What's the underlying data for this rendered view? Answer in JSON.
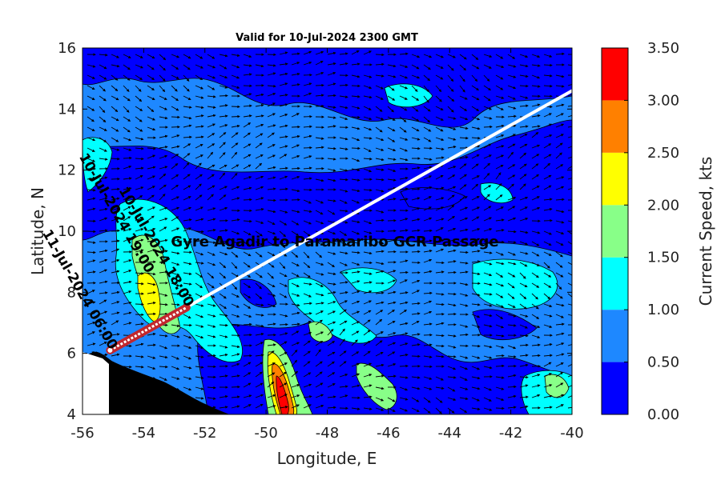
{
  "title": "Valid for 10-Jul-2024 2300 GMT",
  "map": {
    "xlabel": "Longitude, E",
    "ylabel": "Latitude, N",
    "xlim": [
      -56,
      -40
    ],
    "ylim": [
      4,
      16
    ],
    "xticks": [
      "-56",
      "-54",
      "-52",
      "-50",
      "-48",
      "-46",
      "-44",
      "-42",
      "-40"
    ],
    "yticks": [
      "4",
      "6",
      "8",
      "10",
      "12",
      "14",
      "16"
    ],
    "route": {
      "label": "Gyre Agadir to Paramaribo GCR Passage",
      "start": [
        -55.1,
        6.1
      ],
      "end": [
        -40.0,
        14.6
      ],
      "traveled_end": [
        -52.6,
        7.5
      ],
      "color": "#ffffff",
      "traveled_color": "#c1272d"
    },
    "timestamps": [
      {
        "text": "11-Jul-2024 06:00",
        "at": [
          -55.1,
          6.1
        ]
      },
      {
        "text": "10-Jul-2024 18:00",
        "at": [
          -52.6,
          7.5
        ]
      },
      {
        "text": "10-Jul-2024 19:00",
        "at": [
          -53.9,
          8.6
        ]
      }
    ],
    "land_color": "#000000"
  },
  "colorbar": {
    "label": "Current Speed, kts",
    "ticks": [
      "0.00",
      "0.50",
      "1.00",
      "1.50",
      "2.00",
      "2.50",
      "3.00",
      "3.50"
    ],
    "colors": [
      "#0000ff",
      "#1e88ff",
      "#00ffff",
      "#88ff88",
      "#ffff00",
      "#ff8000",
      "#ff0000"
    ]
  }
}
